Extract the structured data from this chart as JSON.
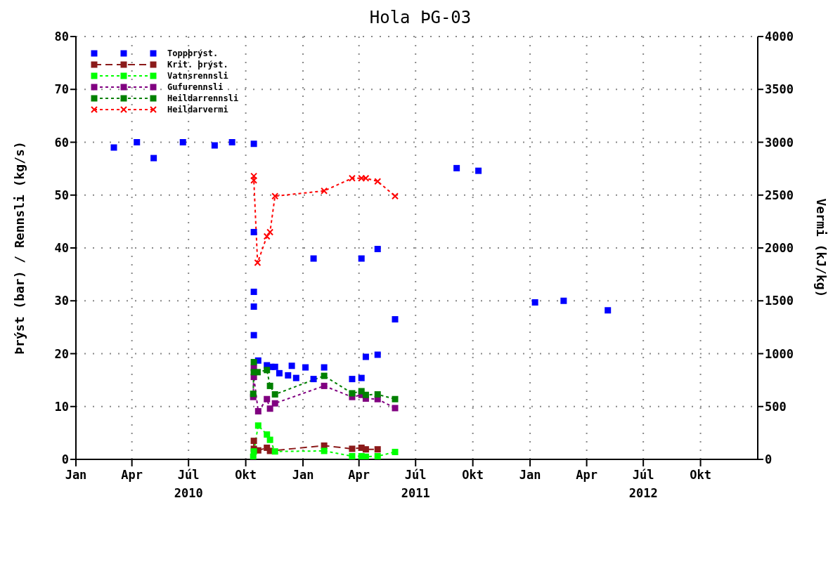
{
  "chart_data": {
    "type": "line",
    "title": "Hola ÞG-03",
    "ylabel": "Þrýst (bar) / Rennsli (kg/s)",
    "y2label": "Vermi (kJ/kg)",
    "xlim": [
      "2010-01-01",
      "2013-01-01"
    ],
    "xticks": [
      {
        "value": "2010-01-01",
        "label": "Jan"
      },
      {
        "value": "2010-04-01",
        "label": "Apr"
      },
      {
        "value": "2010-07-01",
        "label": "Júl\n2010"
      },
      {
        "value": "2010-10-01",
        "label": "Okt"
      },
      {
        "value": "2011-01-01",
        "label": "Jan"
      },
      {
        "value": "2011-04-01",
        "label": "Apr"
      },
      {
        "value": "2011-07-01",
        "label": "Júl\n2011"
      },
      {
        "value": "2011-10-01",
        "label": "Okt"
      },
      {
        "value": "2012-01-01",
        "label": "Jan"
      },
      {
        "value": "2012-04-01",
        "label": "Apr"
      },
      {
        "value": "2012-07-01",
        "label": "Júl\n2012"
      },
      {
        "value": "2012-10-01",
        "label": "Okt"
      }
    ],
    "ylim": [
      0,
      80
    ],
    "yticks": [
      0,
      10,
      20,
      30,
      40,
      50,
      60,
      70,
      80
    ],
    "y2lim": [
      0,
      4000
    ],
    "y2ticks": [
      0,
      500,
      1000,
      1500,
      2000,
      2500,
      3000,
      3500,
      4000
    ],
    "grid": true,
    "legend": "top left",
    "series": [
      {
        "name": "Toppþrýst.",
        "type": "scatter",
        "color": "#0000ff",
        "marker": "square",
        "x": [
          "2010-03-03",
          "2010-04-09",
          "2010-05-06",
          "2010-06-22",
          "2010-08-12",
          "2010-09-09",
          "2010-10-14",
          "2010-10-14",
          "2010-10-14",
          "2010-10-14",
          "2010-10-14",
          "2010-10-21",
          "2010-11-04",
          "2010-11-11",
          "2010-11-17",
          "2010-11-24",
          "2010-12-08",
          "2010-12-14",
          "2010-12-21",
          "2011-01-05",
          "2011-01-18",
          "2011-01-18",
          "2011-02-04",
          "2011-03-21",
          "2011-04-05",
          "2011-04-05",
          "2011-04-12",
          "2011-05-01",
          "2011-05-01",
          "2011-05-29",
          "2011-09-05",
          "2011-10-10",
          "2012-01-09",
          "2012-02-24",
          "2012-05-05"
        ],
        "values": [
          59.0,
          60.0,
          57.0,
          60.0,
          59.4,
          60.0,
          59.7,
          43.0,
          31.7,
          28.9,
          23.5,
          18.7,
          17.8,
          17.5,
          17.5,
          16.3,
          15.9,
          17.7,
          15.4,
          17.4,
          15.2,
          38.0,
          17.4,
          15.2,
          15.4,
          38.0,
          19.4,
          19.8,
          39.8,
          26.5,
          55.1,
          54.6,
          29.7,
          30.0,
          28.2
        ]
      },
      {
        "name": "Krit. þrýst.",
        "color": "#8b1a1a",
        "marker": "square",
        "line_style": "dashed",
        "x": [
          "2010-10-14",
          "2010-10-14",
          "2010-10-21",
          "2010-11-04",
          "2010-11-09",
          "2011-02-04",
          "2011-03-21",
          "2011-04-05",
          "2011-04-12",
          "2011-05-01"
        ],
        "values": [
          3.5,
          2.0,
          1.7,
          2.2,
          1.6,
          2.6,
          2.0,
          2.2,
          1.9,
          1.9
        ]
      },
      {
        "name": "Vatnsrennsli",
        "color": "#00ff00",
        "marker": "square",
        "line_style": "dotted",
        "x": [
          "2010-10-13",
          "2010-10-14",
          "2010-10-21",
          "2010-11-04",
          "2010-11-09",
          "2010-11-17",
          "2011-02-04",
          "2011-03-21",
          "2011-04-05",
          "2011-04-12",
          "2011-05-01",
          "2011-05-29"
        ],
        "values": [
          0.5,
          1.5,
          6.4,
          4.7,
          3.7,
          1.5,
          1.6,
          0.6,
          0.6,
          0.5,
          0.6,
          1.4
        ]
      },
      {
        "name": "Gufurennsli",
        "color": "#800080",
        "marker": "square",
        "line_style": "dotted",
        "x": [
          "2010-10-13",
          "2010-10-14",
          "2010-10-14",
          "2010-10-21",
          "2010-11-04",
          "2010-11-09",
          "2010-11-17",
          "2011-02-04",
          "2011-03-21",
          "2011-04-05",
          "2011-04-12",
          "2011-05-01",
          "2011-05-29"
        ],
        "values": [
          11.8,
          17.3,
          15.6,
          9.1,
          11.4,
          9.6,
          10.6,
          13.9,
          11.8,
          12.2,
          11.5,
          11.4,
          9.7
        ]
      },
      {
        "name": "Heildarrennsli",
        "color": "#008000",
        "marker": "square",
        "line_style": "dotted",
        "x": [
          "2010-10-13",
          "2010-10-14",
          "2010-10-14",
          "2010-10-20",
          "2010-11-04",
          "2010-11-09",
          "2010-11-17",
          "2011-02-04",
          "2011-03-21",
          "2011-04-05",
          "2011-04-12",
          "2011-05-01",
          "2011-05-29"
        ],
        "values": [
          12.4,
          18.4,
          16.5,
          16.5,
          16.9,
          13.9,
          12.3,
          15.8,
          12.5,
          12.9,
          12.2,
          12.3,
          11.4
        ]
      },
      {
        "name": "Heildarvermi",
        "axis": "y2",
        "color": "#ff0000",
        "marker": "cross",
        "line_style": "dotted",
        "x": [
          "2010-10-14",
          "2010-10-14",
          "2010-10-20",
          "2010-11-04",
          "2010-11-09",
          "2010-11-17",
          "2011-02-04",
          "2011-03-21",
          "2011-04-05",
          "2011-04-12",
          "2011-05-01",
          "2011-05-29"
        ],
        "values": [
          2680,
          2640,
          1860,
          2110,
          2150,
          2490,
          2540,
          2660,
          2660,
          2660,
          2630,
          2490
        ]
      }
    ]
  }
}
